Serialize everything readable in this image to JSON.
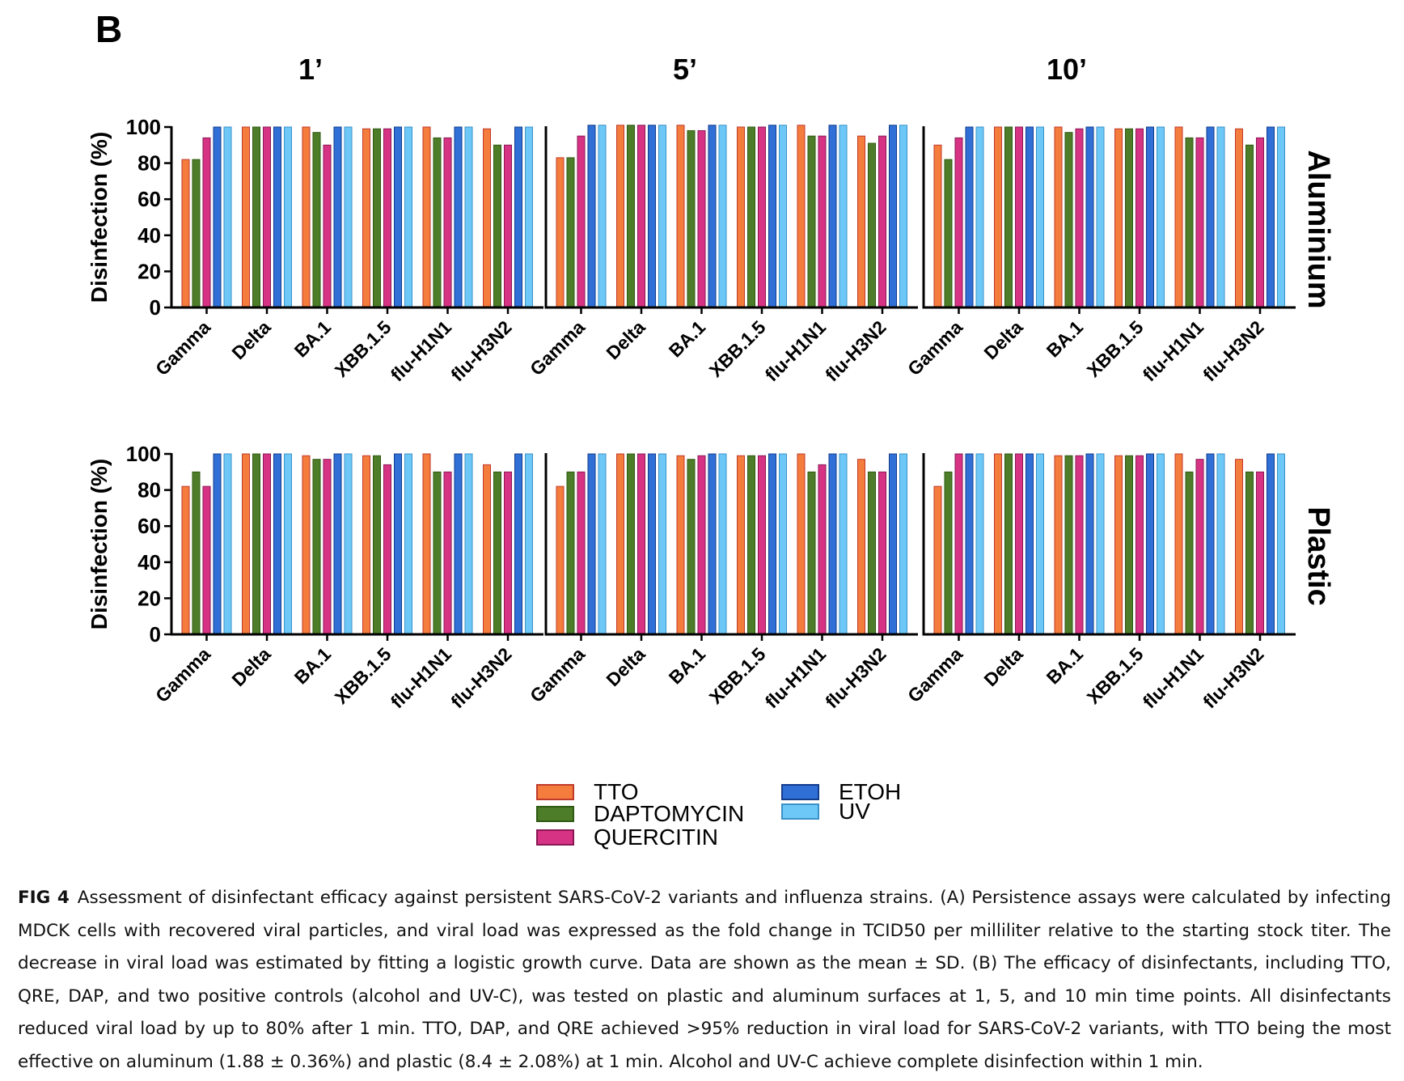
{
  "panel_label": "B",
  "x_categories": [
    "Gamma",
    "Delta",
    "BA.1",
    "XBB.1.5",
    "flu-H1N1",
    "flu-H3N2"
  ],
  "y_axis": {
    "label": "Disinfection (%)",
    "ticks": [
      "0",
      "20",
      "40",
      "60",
      "80",
      "100"
    ],
    "range": [
      0,
      100
    ]
  },
  "time_titles": [
    "1’",
    "5’",
    "10’"
  ],
  "surface_labels": [
    "Aluminium",
    "Plastic"
  ],
  "legend": [
    {
      "name": "TTO",
      "color": "#F47C3C",
      "edge": "#C0392B"
    },
    {
      "name": "DAPTOMYCIN",
      "color": "#4E7D2A",
      "edge": "#2E5A12"
    },
    {
      "name": "QUERCITIN",
      "color": "#D63384",
      "edge": "#8A1753"
    },
    {
      "name": "ETOH",
      "color": "#2F6FD6",
      "edge": "#123C8C"
    },
    {
      "name": "UV",
      "color": "#6EC8F7",
      "edge": "#3A92C8"
    }
  ],
  "chart_data": [
    {
      "type": "bar",
      "surface": "Aluminium",
      "time": "1’",
      "ylabel": "Disinfection (%)",
      "ylim": [
        0,
        100
      ],
      "grid": false,
      "categories": [
        "Gamma",
        "Delta",
        "BA.1",
        "XBB.1.5",
        "flu-H1N1",
        "flu-H3N2"
      ],
      "series": [
        {
          "name": "TTO",
          "values": [
            82,
            100,
            100,
            99,
            100,
            99
          ]
        },
        {
          "name": "DAPTOMYCIN",
          "values": [
            82,
            100,
            97,
            99,
            94,
            90
          ]
        },
        {
          "name": "QUERCITIN",
          "values": [
            94,
            100,
            90,
            99,
            94,
            90
          ]
        },
        {
          "name": "ETOH",
          "values": [
            100,
            100,
            100,
            100,
            100,
            100
          ]
        },
        {
          "name": "UV",
          "values": [
            100,
            100,
            100,
            100,
            100,
            100
          ]
        }
      ]
    },
    {
      "type": "bar",
      "surface": "Aluminium",
      "time": "5’",
      "ylabel": "Disinfection (%)",
      "ylim": [
        0,
        100
      ],
      "grid": false,
      "categories": [
        "Gamma",
        "Delta",
        "BA.1",
        "XBB.1.5",
        "flu-H1N1",
        "flu-H3N2"
      ],
      "series": [
        {
          "name": "TTO",
          "values": [
            83,
            101,
            101,
            100,
            101,
            95
          ]
        },
        {
          "name": "DAPTOMYCIN",
          "values": [
            83,
            101,
            98,
            100,
            95,
            91
          ]
        },
        {
          "name": "QUERCITIN",
          "values": [
            95,
            101,
            98,
            100,
            95,
            95
          ]
        },
        {
          "name": "ETOH",
          "values": [
            101,
            101,
            101,
            101,
            101,
            101
          ]
        },
        {
          "name": "UV",
          "values": [
            101,
            101,
            101,
            101,
            101,
            101
          ]
        }
      ]
    },
    {
      "type": "bar",
      "surface": "Aluminium",
      "time": "10’",
      "ylabel": "Disinfection (%)",
      "ylim": [
        0,
        100
      ],
      "grid": false,
      "categories": [
        "Gamma",
        "Delta",
        "BA.1",
        "XBB.1.5",
        "flu-H1N1",
        "flu-H3N2"
      ],
      "series": [
        {
          "name": "TTO",
          "values": [
            90,
            100,
            100,
            99,
            100,
            99
          ]
        },
        {
          "name": "DAPTOMYCIN",
          "values": [
            82,
            100,
            97,
            99,
            94,
            90
          ]
        },
        {
          "name": "QUERCITIN",
          "values": [
            94,
            100,
            99,
            99,
            94,
            94
          ]
        },
        {
          "name": "ETOH",
          "values": [
            100,
            100,
            100,
            100,
            100,
            100
          ]
        },
        {
          "name": "UV",
          "values": [
            100,
            100,
            100,
            100,
            100,
            100
          ]
        }
      ]
    },
    {
      "type": "bar",
      "surface": "Plastic",
      "time": "1’",
      "ylabel": "Disinfection (%)",
      "ylim": [
        0,
        100
      ],
      "grid": false,
      "categories": [
        "Gamma",
        "Delta",
        "BA.1",
        "XBB.1.5",
        "flu-H1N1",
        "flu-H3N2"
      ],
      "series": [
        {
          "name": "TTO",
          "values": [
            82,
            100,
            99,
            99,
            100,
            94
          ]
        },
        {
          "name": "DAPTOMYCIN",
          "values": [
            90,
            100,
            97,
            99,
            90,
            90
          ]
        },
        {
          "name": "QUERCITIN",
          "values": [
            82,
            100,
            97,
            94,
            90,
            90
          ]
        },
        {
          "name": "ETOH",
          "values": [
            100,
            100,
            100,
            100,
            100,
            100
          ]
        },
        {
          "name": "UV",
          "values": [
            100,
            100,
            100,
            100,
            100,
            100
          ]
        }
      ]
    },
    {
      "type": "bar",
      "surface": "Plastic",
      "time": "5’",
      "ylabel": "Disinfection (%)",
      "ylim": [
        0,
        100
      ],
      "grid": false,
      "categories": [
        "Gamma",
        "Delta",
        "BA.1",
        "XBB.1.5",
        "flu-H1N1",
        "flu-H3N2"
      ],
      "series": [
        {
          "name": "TTO",
          "values": [
            82,
            100,
            99,
            99,
            100,
            97
          ]
        },
        {
          "name": "DAPTOMYCIN",
          "values": [
            90,
            100,
            97,
            99,
            90,
            90
          ]
        },
        {
          "name": "QUERCITIN",
          "values": [
            90,
            100,
            99,
            99,
            94,
            90
          ]
        },
        {
          "name": "ETOH",
          "values": [
            100,
            100,
            100,
            100,
            100,
            100
          ]
        },
        {
          "name": "UV",
          "values": [
            100,
            100,
            100,
            100,
            100,
            100
          ]
        }
      ]
    },
    {
      "type": "bar",
      "surface": "Plastic",
      "time": "10’",
      "ylabel": "Disinfection (%)",
      "ylim": [
        0,
        100
      ],
      "grid": false,
      "categories": [
        "Gamma",
        "Delta",
        "BA.1",
        "XBB.1.5",
        "flu-H1N1",
        "flu-H3N2"
      ],
      "series": [
        {
          "name": "TTO",
          "values": [
            82,
            100,
            99,
            99,
            100,
            97
          ]
        },
        {
          "name": "DAPTOMYCIN",
          "values": [
            90,
            100,
            99,
            99,
            90,
            90
          ]
        },
        {
          "name": "QUERCITIN",
          "values": [
            100,
            100,
            99,
            99,
            97,
            90
          ]
        },
        {
          "name": "ETOH",
          "values": [
            100,
            100,
            100,
            100,
            100,
            100
          ]
        },
        {
          "name": "UV",
          "values": [
            100,
            100,
            100,
            100,
            100,
            100
          ]
        }
      ]
    }
  ],
  "caption": {
    "label": "FIG 4",
    "text": "Assessment of disinfectant efficacy against persistent SARS-CoV-2 variants and influenza strains. (A) Persistence assays were calculated by infecting MDCK cells with recovered viral particles, and viral load was expressed as the fold change in TCID50 per milliliter relative to the starting stock titer. The decrease in viral load was estimated by fitting a logistic growth curve. Data are shown as the mean ± SD. (B) The efficacy of disinfectants, including TTO, QRE, DAP, and two positive controls (alcohol and UV-C), was tested on plastic and aluminum surfaces at 1, 5, and 10 min time points. All disinfectants reduced viral load by up to 80% after 1 min. TTO, DAP, and QRE achieved >95% reduction in viral load for SARS-CoV-2 variants, with TTO being the most effective on aluminum (1.88 ± 0.36%) and plastic (8.4 ± 2.08%) at 1 min. Alcohol and UV-C achieve complete disinfection within 1 min."
  }
}
